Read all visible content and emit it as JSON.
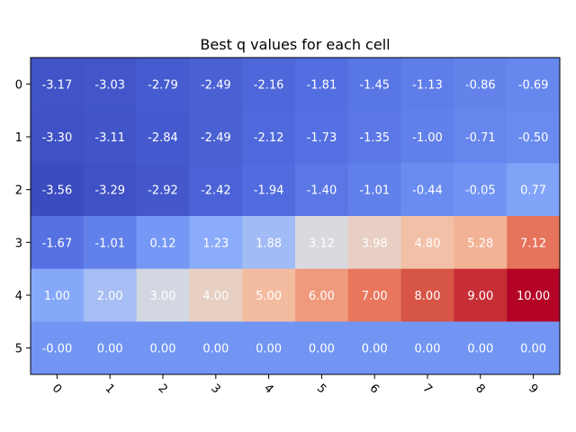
{
  "chart_data": {
    "type": "heatmap",
    "title": "Best q values for each cell",
    "xlabel": "",
    "ylabel": "",
    "x_categories": [
      "0",
      "1",
      "2",
      "3",
      "4",
      "5",
      "6",
      "7",
      "8",
      "9"
    ],
    "y_categories": [
      "0",
      "1",
      "2",
      "3",
      "4",
      "5"
    ],
    "colormap": "coolwarm",
    "value_range": [
      -3.56,
      10.0
    ],
    "values": [
      [
        -3.17,
        -3.03,
        -2.79,
        -2.49,
        -2.16,
        -1.81,
        -1.45,
        -1.13,
        -0.86,
        -0.69
      ],
      [
        -3.3,
        -3.11,
        -2.84,
        -2.49,
        -2.12,
        -1.73,
        -1.35,
        -1.0,
        -0.71,
        -0.5
      ],
      [
        -3.56,
        -3.29,
        -2.92,
        -2.42,
        -1.94,
        -1.4,
        -1.01,
        -0.44,
        -0.05,
        0.77
      ],
      [
        -1.67,
        -1.01,
        0.12,
        1.23,
        1.88,
        3.12,
        3.98,
        4.8,
        5.28,
        7.12
      ],
      [
        1.0,
        2.0,
        3.0,
        4.0,
        5.0,
        6.0,
        7.0,
        8.0,
        9.0,
        10.0
      ],
      [
        -0.0,
        0.0,
        0.0,
        0.0,
        0.0,
        0.0,
        0.0,
        0.0,
        0.0,
        0.0
      ]
    ],
    "labels": [
      [
        "-3.17",
        "-3.03",
        "-2.79",
        "-2.49",
        "-2.16",
        "-1.81",
        "-1.45",
        "-1.13",
        "-0.86",
        "-0.69"
      ],
      [
        "-3.30",
        "-3.11",
        "-2.84",
        "-2.49",
        "-2.12",
        "-1.73",
        "-1.35",
        "-1.00",
        "-0.71",
        "-0.50"
      ],
      [
        "-3.56",
        "-3.29",
        "-2.92",
        "-2.42",
        "-1.94",
        "-1.40",
        "-1.01",
        "-0.44",
        "-0.05",
        "0.77"
      ],
      [
        "-1.67",
        "-1.01",
        "0.12",
        "1.23",
        "1.88",
        "3.12",
        "3.98",
        "4.80",
        "5.28",
        "7.12"
      ],
      [
        "1.00",
        "2.00",
        "3.00",
        "4.00",
        "5.00",
        "6.00",
        "7.00",
        "8.00",
        "9.00",
        "10.00"
      ],
      [
        "-0.00",
        "0.00",
        "0.00",
        "0.00",
        "0.00",
        "0.00",
        "0.00",
        "0.00",
        "0.00",
        "0.00"
      ]
    ],
    "grid": false,
    "legend": "none",
    "x_tick_rotation_deg": 45
  }
}
